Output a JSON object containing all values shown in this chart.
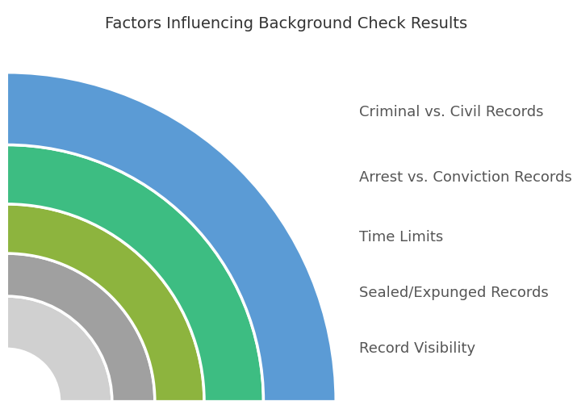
{
  "title": "Factors Influencing Background Check Results",
  "title_fontsize": 14,
  "title_color": "#333333",
  "background_color": "#ffffff",
  "labels": [
    "Criminal vs. Civil Records",
    "Arrest vs. Conviction Records",
    "Time Limits",
    "Sealed/Expunged Records",
    "Record Visibility"
  ],
  "colors": [
    "#5B9BD5",
    "#3DBD82",
    "#8DB43E",
    "#A0A0A0",
    "#D0D0D0"
  ],
  "outer_radii": [
    1.0,
    0.78,
    0.6,
    0.45,
    0.32
  ],
  "inner_radii": [
    0.78,
    0.6,
    0.45,
    0.32,
    0.16
  ],
  "theta1": 0,
  "theta2": 90,
  "label_fontsize": 13,
  "label_color": "#555555",
  "edgecolor": "#ffffff",
  "linewidth": 2.5
}
